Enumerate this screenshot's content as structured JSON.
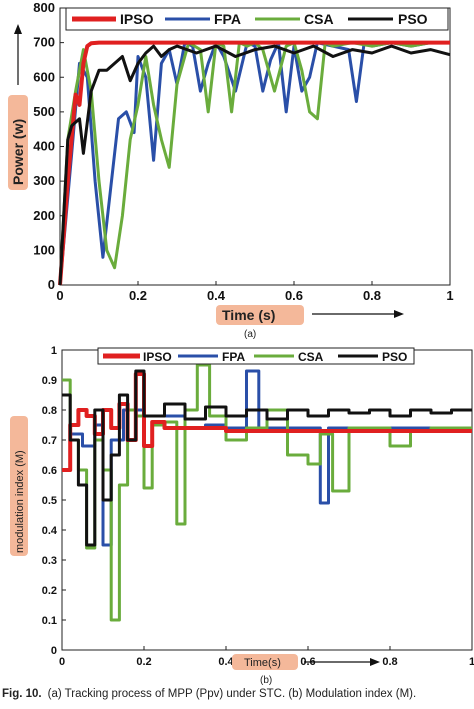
{
  "caption": {
    "label": "Fig. 10.",
    "text": "(a) Tracking process of MPP (Ppv) under STC. (b) Modulation index (M)."
  },
  "colors": {
    "IPSO": "#e02020",
    "FPA": "#2a4fa8",
    "CSA": "#6aac3c",
    "PSO": "#111111",
    "label_box": "#f4b89a"
  },
  "chart_data": [
    {
      "type": "line",
      "panel_label": "(a)",
      "xlabel": "Time (s)",
      "ylabel": "Power (w)",
      "xlim": [
        0,
        1
      ],
      "ylim": [
        0,
        800
      ],
      "xticks": [
        "0",
        "0.2",
        "0.4",
        "0.6",
        "0.8",
        "1"
      ],
      "yticks": [
        "0",
        "100",
        "200",
        "300",
        "400",
        "500",
        "600",
        "700",
        "800"
      ],
      "legend": "top",
      "series": [
        {
          "name": "IPSO",
          "x": [
            0,
            0.02,
            0.04,
            0.05,
            0.06,
            0.07,
            0.08,
            0.1,
            0.2,
            1.0
          ],
          "y": [
            0,
            300,
            550,
            520,
            640,
            690,
            698,
            700,
            700,
            700
          ]
        },
        {
          "name": "FPA",
          "x": [
            0,
            0.03,
            0.05,
            0.07,
            0.09,
            0.11,
            0.13,
            0.15,
            0.17,
            0.19,
            0.2,
            0.22,
            0.24,
            0.26,
            0.28,
            0.3,
            0.32,
            0.34,
            0.36,
            0.38,
            0.4,
            0.42,
            0.45,
            0.48,
            0.5,
            0.52,
            0.54,
            0.56,
            0.58,
            0.6,
            0.62,
            0.64,
            0.66,
            0.7,
            0.74,
            0.76,
            0.78,
            0.8,
            0.85,
            0.9,
            0.95,
            1.0
          ],
          "y": [
            0,
            380,
            640,
            600,
            300,
            80,
            280,
            480,
            500,
            440,
            660,
            600,
            360,
            640,
            680,
            580,
            700,
            690,
            560,
            640,
            700,
            660,
            560,
            700,
            690,
            560,
            650,
            700,
            500,
            690,
            560,
            600,
            700,
            690,
            680,
            530,
            700,
            690,
            700,
            690,
            700,
            700
          ]
        },
        {
          "name": "CSA",
          "x": [
            0,
            0.02,
            0.04,
            0.06,
            0.08,
            0.1,
            0.12,
            0.14,
            0.16,
            0.18,
            0.2,
            0.22,
            0.24,
            0.26,
            0.28,
            0.3,
            0.33,
            0.36,
            0.38,
            0.4,
            0.42,
            0.44,
            0.46,
            0.48,
            0.5,
            0.52,
            0.55,
            0.58,
            0.6,
            0.62,
            0.64,
            0.66,
            0.68,
            0.7,
            0.75,
            0.8,
            0.85,
            0.9,
            0.95,
            1.0
          ],
          "y": [
            0,
            420,
            560,
            680,
            560,
            300,
            100,
            50,
            200,
            420,
            520,
            660,
            520,
            420,
            340,
            580,
            700,
            680,
            500,
            700,
            690,
            500,
            700,
            690,
            700,
            680,
            560,
            690,
            700,
            620,
            500,
            480,
            700,
            690,
            700,
            690,
            700,
            690,
            700,
            700
          ]
        },
        {
          "name": "PSO",
          "x": [
            0,
            0.02,
            0.03,
            0.05,
            0.06,
            0.08,
            0.1,
            0.12,
            0.14,
            0.16,
            0.18,
            0.2,
            0.22,
            0.24,
            0.26,
            0.28,
            0.3,
            0.35,
            0.4,
            0.45,
            0.5,
            0.55,
            0.6,
            0.65,
            0.7,
            0.75,
            0.8,
            0.85,
            0.9,
            0.95,
            1.0
          ],
          "y": [
            0,
            420,
            460,
            480,
            380,
            560,
            620,
            620,
            640,
            660,
            590,
            640,
            670,
            690,
            660,
            680,
            690,
            670,
            690,
            660,
            680,
            690,
            670,
            690,
            660,
            680,
            670,
            690,
            670,
            680,
            665
          ]
        }
      ]
    },
    {
      "type": "line",
      "panel_label": "(b)",
      "xlabel": "Time(s)",
      "ylabel": "modulation index (M)",
      "xlim": [
        0,
        1
      ],
      "ylim": [
        0,
        1
      ],
      "xticks": [
        "0",
        "0.2",
        "0.4",
        "0.6",
        "0.8",
        "1"
      ],
      "yticks": [
        "0",
        "0.1",
        "0.2",
        "0.3",
        "0.4",
        "0.5",
        "0.6",
        "0.7",
        "0.8",
        "0.9",
        "1"
      ],
      "legend": "top",
      "series": [
        {
          "name": "IPSO",
          "x": [
            0,
            0.02,
            0.04,
            0.06,
            0.08,
            0.1,
            0.12,
            0.14,
            0.16,
            0.18,
            0.2,
            0.22,
            0.25,
            0.3,
            0.4,
            0.5,
            0.6,
            0.7,
            0.8,
            0.9,
            1.0
          ],
          "y": [
            0.6,
            0.75,
            0.8,
            0.78,
            0.72,
            0.8,
            0.74,
            0.82,
            0.7,
            0.92,
            0.68,
            0.76,
            0.74,
            0.74,
            0.73,
            0.73,
            0.73,
            0.73,
            0.73,
            0.73,
            0.73
          ]
        },
        {
          "name": "FPA",
          "x": [
            0,
            0.02,
            0.05,
            0.08,
            0.1,
            0.12,
            0.15,
            0.2,
            0.25,
            0.3,
            0.35,
            0.4,
            0.45,
            0.48,
            0.5,
            0.55,
            0.6,
            0.63,
            0.65,
            0.7,
            0.8,
            0.9,
            1.0
          ],
          "y": [
            0.6,
            0.72,
            0.68,
            0.75,
            0.35,
            0.7,
            0.8,
            0.78,
            0.78,
            0.74,
            0.75,
            0.74,
            0.93,
            0.74,
            0.74,
            0.74,
            0.74,
            0.49,
            0.74,
            0.74,
            0.74,
            0.74,
            0.74
          ]
        },
        {
          "name": "CSA",
          "x": [
            0,
            0.02,
            0.04,
            0.06,
            0.08,
            0.1,
            0.12,
            0.14,
            0.16,
            0.18,
            0.2,
            0.22,
            0.25,
            0.28,
            0.3,
            0.33,
            0.36,
            0.4,
            0.45,
            0.5,
            0.55,
            0.6,
            0.63,
            0.66,
            0.7,
            0.8,
            0.85,
            0.9,
            1.0
          ],
          "y": [
            0.9,
            0.7,
            0.6,
            0.34,
            0.7,
            0.6,
            0.1,
            0.55,
            0.8,
            0.78,
            0.54,
            0.75,
            0.76,
            0.42,
            0.8,
            0.95,
            0.78,
            0.7,
            0.74,
            0.8,
            0.65,
            0.62,
            0.72,
            0.53,
            0.74,
            0.68,
            0.73,
            0.74,
            0.74
          ]
        },
        {
          "name": "PSO",
          "x": [
            0,
            0.02,
            0.04,
            0.06,
            0.08,
            0.1,
            0.12,
            0.14,
            0.16,
            0.18,
            0.2,
            0.25,
            0.3,
            0.35,
            0.4,
            0.45,
            0.5,
            0.55,
            0.6,
            0.65,
            0.7,
            0.75,
            0.8,
            0.85,
            0.9,
            0.95,
            1.0
          ],
          "y": [
            0.85,
            0.7,
            0.55,
            0.35,
            0.8,
            0.5,
            0.65,
            0.85,
            0.7,
            0.93,
            0.78,
            0.82,
            0.77,
            0.81,
            0.78,
            0.8,
            0.77,
            0.8,
            0.78,
            0.8,
            0.79,
            0.8,
            0.78,
            0.8,
            0.79,
            0.8,
            0.8
          ]
        }
      ]
    }
  ]
}
